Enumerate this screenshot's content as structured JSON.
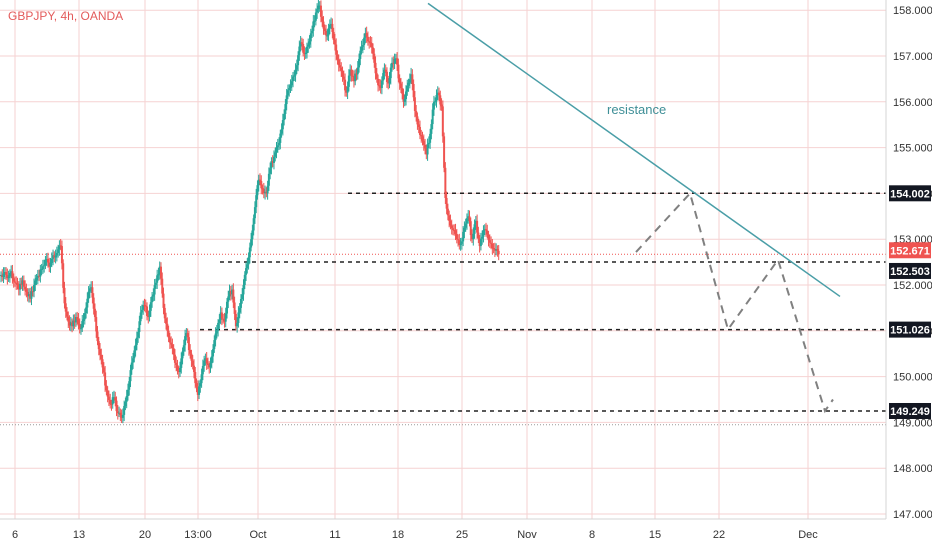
{
  "chart_data": {
    "type": "candlestick",
    "title": "GBPJPY, 4h, OANDA",
    "symbol": "GBPJPY",
    "interval": "4h",
    "broker": "OANDA",
    "colors": {
      "up": "#26a69a",
      "down": "#ef5350",
      "grid": "#f6d2d2",
      "resistance": "#4a9ea7",
      "projection": "#808080",
      "tag": "#131722",
      "last_price_tag": "#ef5350"
    },
    "y_axis": {
      "range": [
        146.8,
        158.2
      ],
      "ticks": [
        "147.000",
        "148.000",
        "149.000",
        "150.000",
        "151.000",
        "152.000",
        "153.000",
        "154.000",
        "155.000",
        "156.000",
        "157.000",
        "158.000"
      ]
    },
    "x_axis": {
      "labels": [
        "6",
        "13",
        "20",
        "13:00",
        "Oct",
        "11",
        "18",
        "25",
        "Nov",
        "8",
        "15",
        "22",
        "Dec"
      ]
    },
    "series": [
      {
        "name": "price",
        "close": [
          152.25,
          152.15,
          152.3,
          152.05,
          151.9,
          152.1,
          151.85,
          151.7,
          152.0,
          152.2,
          152.35,
          152.55,
          152.4,
          152.65,
          152.7,
          152.85,
          151.6,
          151.2,
          151.1,
          151.3,
          151.05,
          151.25,
          151.7,
          151.95,
          151.3,
          150.6,
          150.2,
          149.7,
          149.4,
          149.55,
          149.2,
          149.1,
          149.45,
          149.9,
          150.4,
          150.85,
          151.4,
          151.55,
          151.3,
          151.75,
          152.05,
          152.4,
          151.5,
          151.0,
          150.7,
          150.3,
          150.1,
          150.55,
          150.95,
          150.5,
          150.1,
          149.6,
          150.05,
          150.4,
          150.2,
          150.6,
          151.0,
          151.4,
          151.2,
          151.75,
          151.9,
          151.1,
          151.5,
          152.0,
          152.45,
          153.0,
          153.7,
          154.3,
          154.1,
          154.0,
          154.55,
          154.8,
          155.05,
          155.4,
          155.95,
          156.3,
          156.55,
          156.8,
          157.3,
          157.05,
          157.25,
          157.55,
          157.95,
          158.1,
          157.6,
          157.45,
          157.7,
          157.25,
          156.8,
          156.55,
          156.2,
          156.7,
          156.45,
          156.75,
          157.2,
          157.5,
          157.3,
          157.05,
          156.5,
          156.3,
          156.7,
          156.4,
          156.85,
          156.95,
          156.4,
          156.0,
          156.35,
          156.6,
          155.8,
          155.45,
          155.15,
          154.85,
          155.3,
          156.0,
          156.2,
          155.9,
          153.9,
          153.4,
          153.2,
          153.0,
          152.9,
          153.25,
          153.5,
          153.0,
          153.4,
          152.85,
          153.2,
          153.1,
          152.9,
          152.75,
          152.67
        ]
      }
    ],
    "levels": [
      {
        "label": "154.002",
        "value": 154.002
      },
      {
        "label": "152.503",
        "value": 152.503
      },
      {
        "label": "151.026",
        "value": 151.026
      },
      {
        "label": "149.249",
        "value": 149.249
      }
    ],
    "last_price": {
      "label": "152.671",
      "value": 152.671
    },
    "annotations": [
      {
        "text": "resistance"
      }
    ],
    "trendline": {
      "from": {
        "bar": 104,
        "price": 158.15
      },
      "to": {
        "bar": 215,
        "price": 151.75
      }
    },
    "projection": [
      {
        "bar": 132,
        "price": 152.72
      },
      {
        "bar": 157,
        "price": 154.0
      },
      {
        "bar": 172,
        "price": 151.03
      },
      {
        "bar": 187,
        "price": 152.55
      },
      {
        "bar": 207,
        "price": 149.25
      },
      {
        "bar": 211,
        "price": 149.5
      }
    ]
  }
}
